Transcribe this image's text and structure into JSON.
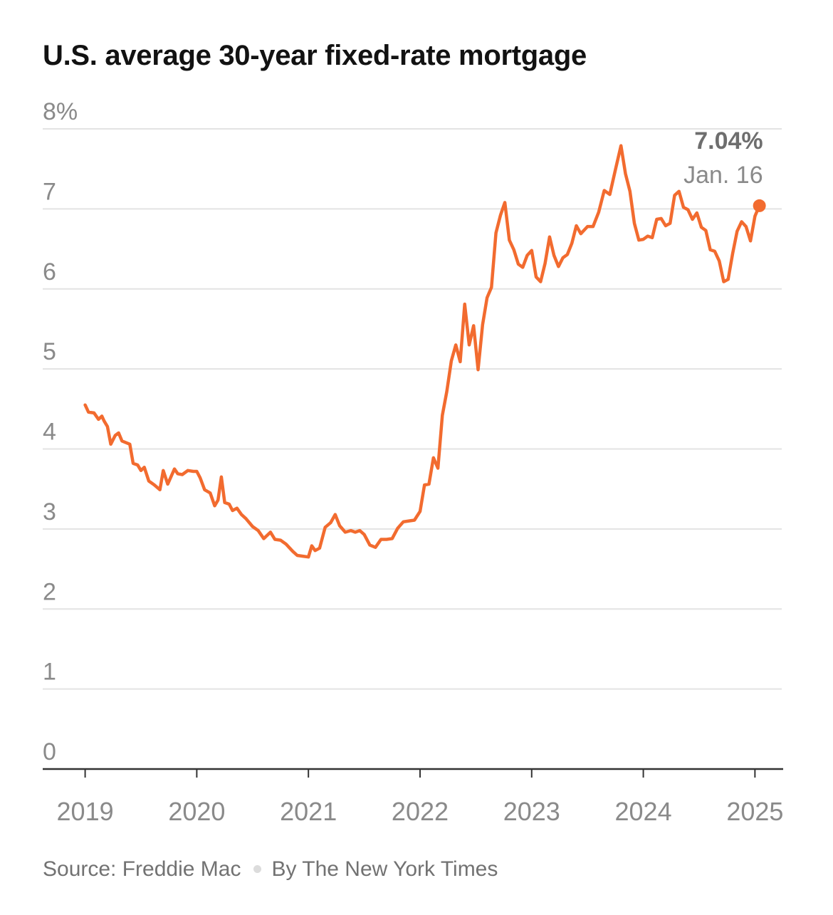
{
  "title": "U.S. average 30-year fixed-rate mortgage",
  "source": {
    "source_text": "Source: Freddie Mac",
    "byline": "By The New York Times"
  },
  "colors": {
    "line": "#f26b2f",
    "grid": "#e3e3e3",
    "axis": "#333333",
    "tick_text": "#8a8a8a",
    "annotation_value": "#6e6e6e"
  },
  "chart_data": {
    "type": "line",
    "title": "U.S. average 30-year fixed-rate mortgage",
    "xlabel": "",
    "ylabel": "",
    "xlim": [
      2018.62,
      2025.24
    ],
    "ylim": [
      0,
      8
    ],
    "x_ticks": [
      2019,
      2020,
      2021,
      2022,
      2023,
      2024,
      2025
    ],
    "x_tick_labels": [
      "2019",
      "2020",
      "2021",
      "2022",
      "2023",
      "2024",
      "2025"
    ],
    "y_ticks": [
      0,
      1,
      2,
      3,
      4,
      5,
      6,
      7,
      8
    ],
    "y_tick_labels": [
      "0",
      "1",
      "2",
      "3",
      "4",
      "5",
      "6",
      "7",
      "8%"
    ],
    "grid": true,
    "series": [
      {
        "values": [
          [
            2019.0,
            4.55
          ],
          [
            2019.03,
            4.46
          ],
          [
            2019.08,
            4.45
          ],
          [
            2019.12,
            4.37
          ],
          [
            2019.15,
            4.41
          ],
          [
            2019.17,
            4.35
          ],
          [
            2019.2,
            4.28
          ],
          [
            2019.23,
            4.06
          ],
          [
            2019.27,
            4.17
          ],
          [
            2019.3,
            4.2
          ],
          [
            2019.33,
            4.1
          ],
          [
            2019.4,
            4.06
          ],
          [
            2019.43,
            3.82
          ],
          [
            2019.47,
            3.8
          ],
          [
            2019.5,
            3.73
          ],
          [
            2019.53,
            3.77
          ],
          [
            2019.57,
            3.6
          ],
          [
            2019.62,
            3.55
          ],
          [
            2019.67,
            3.49
          ],
          [
            2019.7,
            3.73
          ],
          [
            2019.74,
            3.56
          ],
          [
            2019.8,
            3.75
          ],
          [
            2019.83,
            3.69
          ],
          [
            2019.87,
            3.68
          ],
          [
            2019.92,
            3.73
          ],
          [
            2019.97,
            3.72
          ],
          [
            2020.0,
            3.72
          ],
          [
            2020.03,
            3.64
          ],
          [
            2020.07,
            3.49
          ],
          [
            2020.12,
            3.45
          ],
          [
            2020.16,
            3.29
          ],
          [
            2020.19,
            3.36
          ],
          [
            2020.22,
            3.65
          ],
          [
            2020.25,
            3.33
          ],
          [
            2020.29,
            3.31
          ],
          [
            2020.32,
            3.23
          ],
          [
            2020.36,
            3.26
          ],
          [
            2020.4,
            3.18
          ],
          [
            2020.44,
            3.13
          ],
          [
            2020.5,
            3.03
          ],
          [
            2020.55,
            2.98
          ],
          [
            2020.6,
            2.88
          ],
          [
            2020.66,
            2.96
          ],
          [
            2020.7,
            2.87
          ],
          [
            2020.75,
            2.86
          ],
          [
            2020.8,
            2.81
          ],
          [
            2020.86,
            2.72
          ],
          [
            2020.9,
            2.67
          ],
          [
            2020.95,
            2.66
          ],
          [
            2021.0,
            2.65
          ],
          [
            2021.03,
            2.79
          ],
          [
            2021.06,
            2.73
          ],
          [
            2021.1,
            2.76
          ],
          [
            2021.15,
            3.02
          ],
          [
            2021.2,
            3.08
          ],
          [
            2021.24,
            3.18
          ],
          [
            2021.28,
            3.04
          ],
          [
            2021.33,
            2.96
          ],
          [
            2021.38,
            2.98
          ],
          [
            2021.42,
            2.96
          ],
          [
            2021.46,
            2.98
          ],
          [
            2021.5,
            2.93
          ],
          [
            2021.55,
            2.8
          ],
          [
            2021.6,
            2.77
          ],
          [
            2021.65,
            2.87
          ],
          [
            2021.7,
            2.87
          ],
          [
            2021.75,
            2.88
          ],
          [
            2021.8,
            3.01
          ],
          [
            2021.85,
            3.09
          ],
          [
            2021.9,
            3.1
          ],
          [
            2021.95,
            3.11
          ],
          [
            2022.0,
            3.22
          ],
          [
            2022.04,
            3.55
          ],
          [
            2022.08,
            3.56
          ],
          [
            2022.12,
            3.89
          ],
          [
            2022.16,
            3.76
          ],
          [
            2022.2,
            4.42
          ],
          [
            2022.24,
            4.72
          ],
          [
            2022.28,
            5.1
          ],
          [
            2022.32,
            5.3
          ],
          [
            2022.36,
            5.09
          ],
          [
            2022.4,
            5.81
          ],
          [
            2022.44,
            5.3
          ],
          [
            2022.48,
            5.54
          ],
          [
            2022.52,
            4.99
          ],
          [
            2022.56,
            5.55
          ],
          [
            2022.6,
            5.89
          ],
          [
            2022.64,
            6.02
          ],
          [
            2022.68,
            6.7
          ],
          [
            2022.72,
            6.92
          ],
          [
            2022.76,
            7.08
          ],
          [
            2022.8,
            6.61
          ],
          [
            2022.84,
            6.49
          ],
          [
            2022.88,
            6.31
          ],
          [
            2022.92,
            6.27
          ],
          [
            2022.96,
            6.42
          ],
          [
            2023.0,
            6.48
          ],
          [
            2023.04,
            6.15
          ],
          [
            2023.08,
            6.09
          ],
          [
            2023.12,
            6.32
          ],
          [
            2023.16,
            6.65
          ],
          [
            2023.2,
            6.42
          ],
          [
            2023.24,
            6.28
          ],
          [
            2023.28,
            6.39
          ],
          [
            2023.32,
            6.43
          ],
          [
            2023.36,
            6.57
          ],
          [
            2023.4,
            6.79
          ],
          [
            2023.44,
            6.69
          ],
          [
            2023.5,
            6.78
          ],
          [
            2023.55,
            6.78
          ],
          [
            2023.6,
            6.96
          ],
          [
            2023.65,
            7.23
          ],
          [
            2023.7,
            7.18
          ],
          [
            2023.75,
            7.49
          ],
          [
            2023.8,
            7.79
          ],
          [
            2023.84,
            7.44
          ],
          [
            2023.88,
            7.22
          ],
          [
            2023.92,
            6.82
          ],
          [
            2023.96,
            6.61
          ],
          [
            2024.0,
            6.62
          ],
          [
            2024.04,
            6.66
          ],
          [
            2024.08,
            6.64
          ],
          [
            2024.12,
            6.87
          ],
          [
            2024.16,
            6.88
          ],
          [
            2024.2,
            6.79
          ],
          [
            2024.24,
            6.82
          ],
          [
            2024.28,
            7.17
          ],
          [
            2024.32,
            7.22
          ],
          [
            2024.36,
            7.02
          ],
          [
            2024.4,
            6.99
          ],
          [
            2024.44,
            6.87
          ],
          [
            2024.48,
            6.95
          ],
          [
            2024.52,
            6.77
          ],
          [
            2024.56,
            6.73
          ],
          [
            2024.6,
            6.49
          ],
          [
            2024.64,
            6.47
          ],
          [
            2024.68,
            6.35
          ],
          [
            2024.72,
            6.09
          ],
          [
            2024.76,
            6.12
          ],
          [
            2024.8,
            6.44
          ],
          [
            2024.84,
            6.72
          ],
          [
            2024.88,
            6.84
          ],
          [
            2024.92,
            6.78
          ],
          [
            2024.96,
            6.6
          ],
          [
            2025.0,
            6.91
          ],
          [
            2025.04,
            7.04
          ]
        ]
      }
    ],
    "annotation": {
      "value": "7.04%",
      "label": "Jan. 16",
      "x": 2025.04,
      "y": 7.04
    }
  }
}
